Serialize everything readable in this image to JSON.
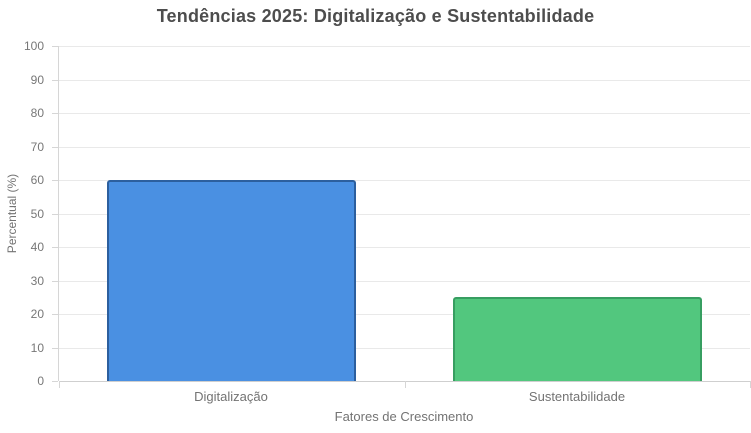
{
  "chart_data": {
    "type": "bar",
    "title": "Tendências 2025: Digitalização e Sustentabilidade",
    "categories": [
      "Digitalização",
      "Sustentabilidade"
    ],
    "values": [
      60,
      25
    ],
    "xlabel": "Fatores de Crescimento",
    "ylabel": "Percentual (%)",
    "ylim": [
      0,
      100
    ],
    "yticks": [
      0,
      10,
      20,
      30,
      40,
      50,
      60,
      70,
      80,
      90,
      100
    ],
    "grid": true,
    "legend": "none",
    "bar_colors": [
      {
        "fill": "#4a90e2",
        "border": "#2c5f9e"
      },
      {
        "fill": "#52c77e",
        "border": "#379e61"
      }
    ]
  },
  "colors": {
    "background": "#ffffff",
    "title_text": "#4d4d4d",
    "tick_label_text": "#777777",
    "axis_title_text": "#737373",
    "gridline": "#e9e9e9",
    "axis_line": "#d6d6d6"
  }
}
